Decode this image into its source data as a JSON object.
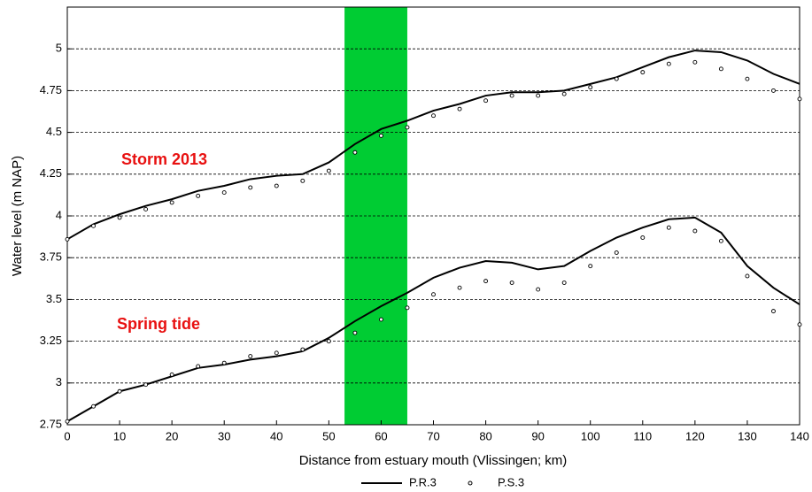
{
  "chart_data": {
    "type": "line",
    "x_label": "Distance from estuary mouth (Vlissingen; km)",
    "y_label": "Water level (m NAP)",
    "x": [
      0,
      5,
      10,
      15,
      20,
      25,
      30,
      35,
      40,
      45,
      50,
      55,
      60,
      65,
      70,
      75,
      80,
      85,
      90,
      95,
      100,
      105,
      110,
      115,
      120,
      125,
      130,
      135,
      140
    ],
    "series": [
      {
        "name": "P.R.3",
        "style": "line",
        "color": "#000000",
        "curves": [
          [
            3.86,
            3.95,
            4.01,
            4.06,
            4.1,
            4.15,
            4.18,
            4.22,
            4.24,
            4.25,
            4.32,
            4.43,
            4.52,
            4.57,
            4.63,
            4.67,
            4.72,
            4.74,
            4.74,
            4.75,
            4.79,
            4.83,
            4.89,
            4.95,
            4.99,
            4.98,
            4.93,
            4.85,
            4.79
          ],
          [
            2.77,
            2.86,
            2.95,
            2.99,
            3.04,
            3.09,
            3.11,
            3.14,
            3.16,
            3.19,
            3.27,
            3.37,
            3.46,
            3.54,
            3.63,
            3.69,
            3.73,
            3.72,
            3.68,
            3.7,
            3.79,
            3.87,
            3.93,
            3.98,
            3.99,
            3.9,
            3.7,
            3.57,
            3.47
          ]
        ]
      },
      {
        "name": "P.S.3",
        "style": "circle",
        "color": "#000000",
        "curves": [
          [
            3.86,
            3.94,
            3.99,
            4.04,
            4.08,
            4.12,
            4.14,
            4.17,
            4.18,
            4.21,
            4.27,
            4.38,
            4.48,
            4.53,
            4.6,
            4.64,
            4.69,
            4.72,
            4.72,
            4.73,
            4.77,
            4.82,
            4.86,
            4.91,
            4.92,
            4.88,
            4.82,
            4.75,
            4.7
          ],
          [
            2.77,
            2.86,
            2.95,
            2.99,
            3.05,
            3.1,
            3.12,
            3.16,
            3.18,
            3.2,
            3.25,
            3.3,
            3.38,
            3.45,
            3.53,
            3.57,
            3.61,
            3.6,
            3.56,
            3.6,
            3.7,
            3.78,
            3.87,
            3.93,
            3.91,
            3.85,
            3.64,
            3.43,
            3.35
          ]
        ]
      }
    ],
    "annotations": [
      "Storm 2013",
      "Spring tide"
    ],
    "annotation_color": "#e81010",
    "highlight": {
      "xlim": [
        53,
        65
      ],
      "color": "#00cc33"
    },
    "xlim": [
      0,
      140
    ],
    "xticks": [
      0,
      10,
      20,
      30,
      40,
      50,
      60,
      70,
      80,
      90,
      100,
      110,
      120,
      130,
      140
    ],
    "ylim": [
      2.75,
      5.25
    ],
    "yticks": [
      2.75,
      3,
      3.25,
      3.5,
      3.75,
      4,
      4.25,
      4.5,
      4.75,
      5
    ],
    "grid": true,
    "legend": "bottom"
  }
}
